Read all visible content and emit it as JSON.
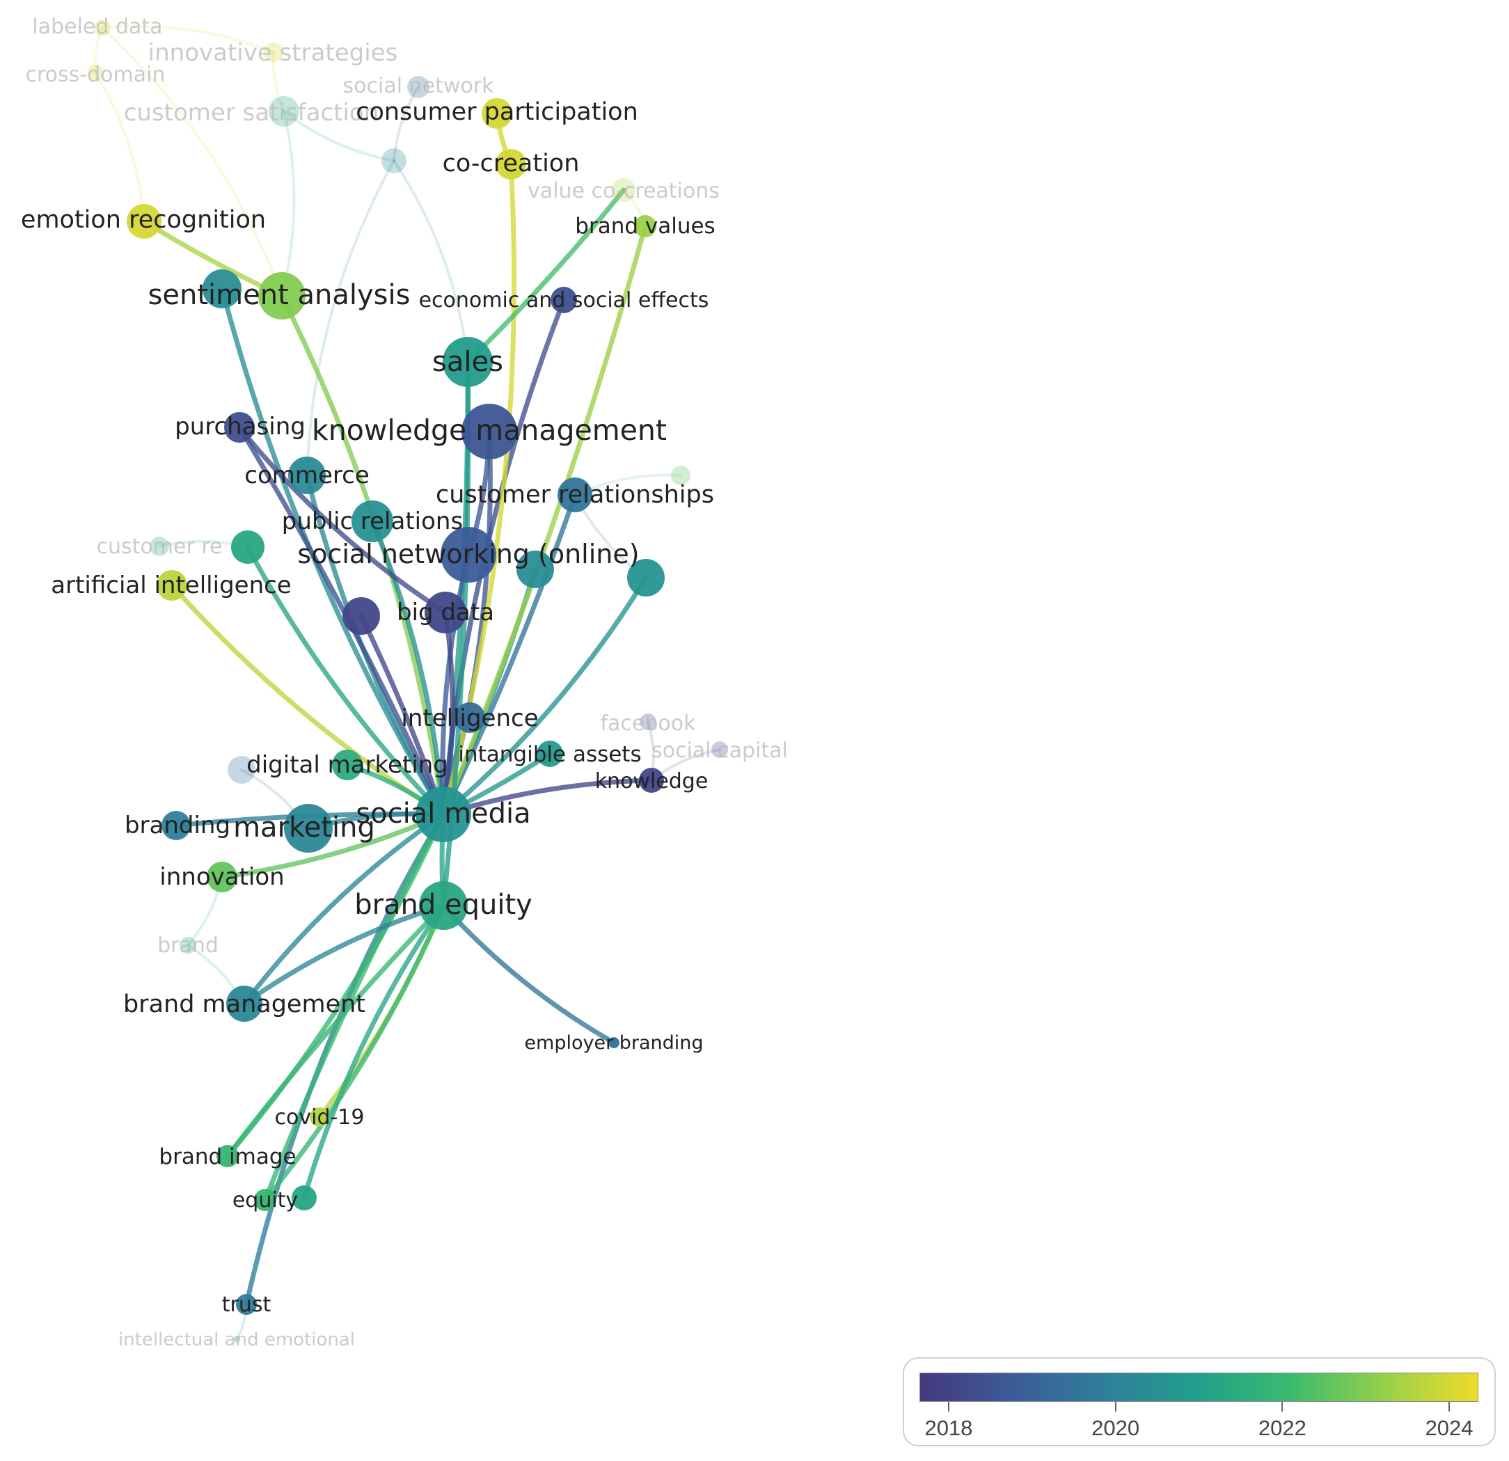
{
  "colors": {
    "scale": [
      "#45397f",
      "#3c5b98",
      "#2f7f9b",
      "#21a08b",
      "#3bbb6d",
      "#96d04a",
      "#f0dc2a"
    ],
    "faded_label": "#b9b9b9",
    "label": "#222222"
  },
  "legend": {
    "ticks": [
      "2018",
      "2020",
      "2022",
      "2024"
    ],
    "tick_values": [
      2018,
      2020,
      2022,
      2024
    ],
    "range": [
      2017.65,
      2024.35
    ]
  },
  "nodes": [
    {
      "id": "labeled-data",
      "label": "labeled data",
      "year": 2024,
      "faded": true
    },
    {
      "id": "innovative-strategies",
      "label": "innovative strategies",
      "year": 2024,
      "faded": true
    },
    {
      "id": "cross-domain",
      "label": "cross-domain",
      "year": 2024,
      "faded": true
    },
    {
      "id": "social-network",
      "label": "social network",
      "year": 2019.5,
      "faded": true
    },
    {
      "id": "customer-satisfaction",
      "label": "customer satisfaction",
      "year": 2021.2,
      "faded": true
    },
    {
      "id": "consumer-participation",
      "label": "consumer participation",
      "year": 2024
    },
    {
      "id": "unlabeled-1",
      "label": "",
      "year": 2020.2,
      "faded": true
    },
    {
      "id": "co-creation",
      "label": "co-creation",
      "year": 2024
    },
    {
      "id": "value-co-creations",
      "label": "value co-creations",
      "year": 2023.5,
      "faded": true
    },
    {
      "id": "emotion-recognition",
      "label": "emotion recognition",
      "year": 2024
    },
    {
      "id": "brand-values",
      "label": "brand values",
      "year": 2023.3
    },
    {
      "id": "sentiment-analysis",
      "label": "sentiment analysis",
      "year": 2023
    },
    {
      "id": "sentiment-analysis-alt",
      "label": "",
      "year": 2020.4
    },
    {
      "id": "economic-and-social-effects",
      "label": "economic and social effects",
      "year": 2018.4
    },
    {
      "id": "sales",
      "label": "sales",
      "year": 2020.9
    },
    {
      "id": "purchasing",
      "label": "purchasing",
      "year": 2018.4
    },
    {
      "id": "knowledge-management",
      "label": "knowledge management",
      "year": 2018.6
    },
    {
      "id": "commerce",
      "label": "commerce",
      "year": 2020.3
    },
    {
      "id": "customer-relationships",
      "label": "customer relationships",
      "year": 2019.6
    },
    {
      "id": "unlabeled-2",
      "label": "",
      "year": 2022.5,
      "faded": true
    },
    {
      "id": "public-relations",
      "label": "public relations",
      "year": 2020.5
    },
    {
      "id": "customer-r",
      "label": "customer re",
      "year": 2021.5,
      "faded": true
    },
    {
      "id": "unlabeled-3",
      "label": "",
      "year": 2021.3
    },
    {
      "id": "social-networking-online",
      "label": "social networking (online)",
      "year": 2018.8
    },
    {
      "id": "unlabeled-4",
      "label": "",
      "year": 2020.4
    },
    {
      "id": "unlabeled-5",
      "label": "",
      "year": 2020.6
    },
    {
      "id": "artificial-intelligence",
      "label": "artificial intelligence",
      "year": 2023.7
    },
    {
      "id": "unlabeled-6",
      "label": "",
      "year": 2018.1
    },
    {
      "id": "big-data",
      "label": "big data",
      "year": 2018.1
    },
    {
      "id": "intelligence",
      "label": "intelligence",
      "year": 2019.3
    },
    {
      "id": "facebook",
      "label": "facebook",
      "year": 2018.2,
      "faded": true
    },
    {
      "id": "social-capital",
      "label": "social capital",
      "year": 2018.2,
      "faded": true
    },
    {
      "id": "intangible-assets",
      "label": "intangible assets",
      "year": 2020.8
    },
    {
      "id": "unlabeled-7",
      "label": "",
      "year": 2019.4,
      "faded": true
    },
    {
      "id": "digital-marketing",
      "label": "digital marketing",
      "year": 2021.5
    },
    {
      "id": "knowledge",
      "label": "knowledge",
      "year": 2018.1
    },
    {
      "id": "social-media",
      "label": "social media",
      "year": 2020.6
    },
    {
      "id": "branding",
      "label": "branding",
      "year": 2019.9
    },
    {
      "id": "marketing",
      "label": "marketing",
      "year": 2020.2
    },
    {
      "id": "innovation",
      "label": "innovation",
      "year": 2022.6
    },
    {
      "id": "brand-equity",
      "label": "brand equity",
      "year": 2021.3
    },
    {
      "id": "brand",
      "label": "brand",
      "year": 2021.2,
      "faded": true
    },
    {
      "id": "brand-management",
      "label": "brand management",
      "year": 2020.2
    },
    {
      "id": "employer-branding",
      "label": "employer branding",
      "year": 2019.6
    },
    {
      "id": "covid-19",
      "label": "covid-19",
      "year": 2023.6
    },
    {
      "id": "brand-image",
      "label": "brand image",
      "year": 2021.9
    },
    {
      "id": "equity-dot",
      "label": "",
      "year": 2021.2
    },
    {
      "id": "equity",
      "label": "equity",
      "year": 2021.9
    },
    {
      "id": "trust",
      "label": "trust",
      "year": 2019.8
    },
    {
      "id": "intellectual-and-emotional",
      "label": "intellectual and emotional",
      "year": 2020.3,
      "faded": true
    }
  ],
  "edges": [
    [
      "social-media",
      "sentiment-analysis"
    ],
    [
      "social-media",
      "sentiment-analysis-alt"
    ],
    [
      "social-media",
      "sales"
    ],
    [
      "social-media",
      "knowledge-management"
    ],
    [
      "social-media",
      "commerce"
    ],
    [
      "social-media",
      "customer-relationships"
    ],
    [
      "social-media",
      "public-relations"
    ],
    [
      "social-media",
      "social-networking-online"
    ],
    [
      "social-media",
      "unlabeled-4"
    ],
    [
      "social-media",
      "unlabeled-5"
    ],
    [
      "social-media",
      "artificial-intelligence"
    ],
    [
      "social-media",
      "unlabeled-6"
    ],
    [
      "social-media",
      "big-data"
    ],
    [
      "social-media",
      "intelligence"
    ],
    [
      "social-media",
      "intangible-assets"
    ],
    [
      "social-media",
      "digital-marketing"
    ],
    [
      "social-media",
      "knowledge"
    ],
    [
      "social-media",
      "branding"
    ],
    [
      "social-media",
      "marketing"
    ],
    [
      "social-media",
      "innovation"
    ],
    [
      "social-media",
      "brand-equity"
    ],
    [
      "social-media",
      "brand-management"
    ],
    [
      "social-media",
      "economic-and-social-effects"
    ],
    [
      "social-media",
      "brand-values"
    ],
    [
      "social-media",
      "co-creation"
    ],
    [
      "social-media",
      "unlabeled-3"
    ],
    [
      "social-media",
      "purchasing"
    ],
    [
      "social-media",
      "trust"
    ],
    [
      "social-media",
      "brand-image"
    ],
    [
      "social-media",
      "equity"
    ],
    [
      "brand-equity",
      "employer-branding"
    ],
    [
      "brand-equity",
      "covid-19"
    ],
    [
      "brand-equity",
      "brand-image"
    ],
    [
      "brand-equity",
      "equity-dot"
    ],
    [
      "brand-equity",
      "equity"
    ],
    [
      "brand-equity",
      "sales"
    ],
    [
      "brand-equity",
      "brand-management"
    ],
    [
      "co-creation",
      "consumer-participation"
    ],
    [
      "emotion-recognition",
      "sentiment-analysis"
    ],
    [
      "purchasing",
      "big-data"
    ],
    [
      "knowledge-management",
      "social-networking-online"
    ],
    [
      "sales",
      "value-co-creations"
    ]
  ],
  "faint_edges": [
    [
      "labeled-data",
      "sentiment-analysis"
    ],
    [
      "innovative-strategies",
      "customer-satisfaction"
    ],
    [
      "cross-domain",
      "emotion-recognition"
    ],
    [
      "social-network",
      "unlabeled-1"
    ],
    [
      "customer-satisfaction",
      "sentiment-analysis"
    ],
    [
      "customer-satisfaction",
      "unlabeled-1"
    ],
    [
      "unlabeled-1",
      "sales"
    ],
    [
      "unlabeled-1",
      "commerce"
    ],
    [
      "customer-r",
      "unlabeled-3"
    ],
    [
      "unlabeled-2",
      "customer-relationships"
    ],
    [
      "facebook",
      "knowledge"
    ],
    [
      "social-capital",
      "knowledge"
    ],
    [
      "unlabeled-7",
      "marketing"
    ],
    [
      "brand",
      "innovation"
    ],
    [
      "brand",
      "brand-management"
    ],
    [
      "intellectual-and-emotional",
      "trust"
    ],
    [
      "cross-domain",
      "labeled-data"
    ],
    [
      "innovative-strategies",
      "labeled-data"
    ],
    [
      "value-co-creations",
      "brand-values"
    ],
    [
      "customer-relationships",
      "unlabeled-5"
    ]
  ]
}
